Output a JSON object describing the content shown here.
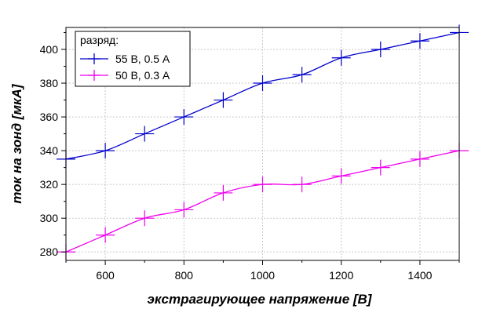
{
  "chart_data": {
    "type": "line",
    "xlabel": "экстрагирующее напряжение [В]",
    "ylabel": "ток на зонд [мкА]",
    "xlim": [
      500,
      1500
    ],
    "ylim": [
      275,
      413
    ],
    "x_ticks": [
      600,
      800,
      1000,
      1200,
      1400
    ],
    "y_ticks": [
      280,
      300,
      320,
      340,
      360,
      380,
      400
    ],
    "grid": true,
    "legend": {
      "title": "разряд:",
      "position": "top-left"
    },
    "x": [
      500,
      600,
      700,
      800,
      900,
      1000,
      1100,
      1200,
      1300,
      1400,
      1500
    ],
    "series": [
      {
        "name": "55 В, 0.5 А",
        "color": "#0000cc",
        "marker": "plus",
        "values": [
          335,
          340,
          350,
          360,
          370,
          380,
          385,
          395,
          400,
          405,
          410
        ]
      },
      {
        "name": "50 В, 0.3 А",
        "color": "#ee00ee",
        "marker": "plus",
        "values": [
          280,
          290,
          300,
          305,
          315,
          320,
          320,
          325,
          330,
          335,
          340
        ]
      }
    ]
  }
}
